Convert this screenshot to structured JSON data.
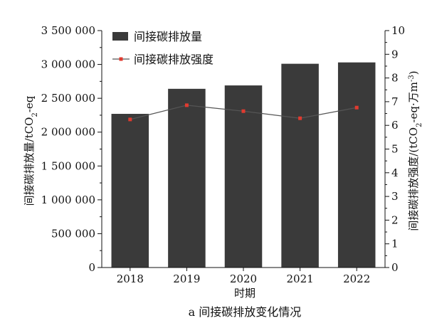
{
  "chart_data": {
    "type": "bar",
    "caption": "a 间接碳排放变化情况",
    "categories": [
      "2018",
      "2019",
      "2020",
      "2021",
      "2022"
    ],
    "xlabel": "时期",
    "ylabel_left": "间接碳排放量/tCO",
    "ylabel_left_sub": "2",
    "ylabel_left_tail": "-eq",
    "ylabel_right": "间接碳排放强度/(tCO",
    "ylabel_right_sub": "2",
    "ylabel_right_mid": "-eq·万m",
    "ylabel_right_sup": "-3",
    "ylabel_right_tail": ")",
    "ylim_left": [
      0,
      3500000
    ],
    "yticks_left": [
      "0",
      "500 000",
      "1 000 000",
      "1 500 000",
      "2 000 000",
      "2 500 000",
      "3 000 000",
      "3 500 000"
    ],
    "ylim_right": [
      0,
      10
    ],
    "yticks_right": [
      "0",
      "1",
      "2",
      "3",
      "4",
      "5",
      "6",
      "7",
      "8",
      "9",
      "10"
    ],
    "legend_position": "top-left",
    "series": [
      {
        "name": "间接碳排放量",
        "type": "bar",
        "axis": "left",
        "color": "#3a3a3a",
        "values": [
          2270000,
          2640000,
          2690000,
          3010000,
          3030000
        ]
      },
      {
        "name": "间接碳排放强度",
        "type": "line",
        "axis": "right",
        "color": "#555555",
        "marker_color": "#e03a2f",
        "values": [
          6.25,
          6.85,
          6.6,
          6.3,
          6.75
        ]
      }
    ]
  }
}
